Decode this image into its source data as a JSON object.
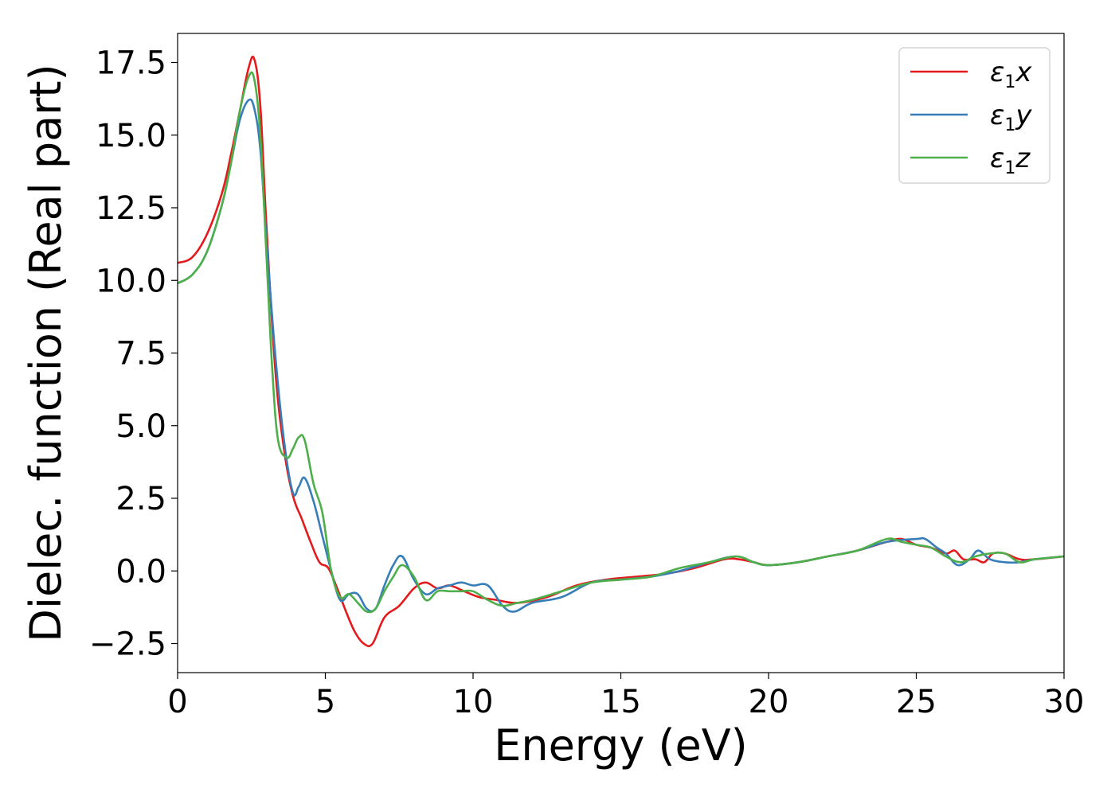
{
  "chart_data": {
    "type": "line",
    "xlabel": "Energy (eV)",
    "ylabel": "Dielec. function (Real part)",
    "xlim": [
      0,
      30
    ],
    "ylim": [
      -3.5,
      18.5
    ],
    "xticks": [
      0,
      5,
      10,
      15,
      20,
      25,
      30
    ],
    "xtick_labels": [
      "0",
      "5",
      "10",
      "15",
      "20",
      "25",
      "30"
    ],
    "yticks": [
      -2.5,
      0.0,
      2.5,
      5.0,
      7.5,
      10.0,
      12.5,
      15.0,
      17.5
    ],
    "ytick_labels": [
      "−2.5",
      "0.0",
      "2.5",
      "5.0",
      "7.5",
      "10.0",
      "12.5",
      "15.0",
      "17.5"
    ],
    "grid": false,
    "legend_position": "top-right",
    "series": [
      {
        "name": "ε1x",
        "legend_symbol": "ε",
        "legend_sub": "1",
        "legend_suffix": "x",
        "color": "#e41a1c",
        "x": [
          0,
          0.5,
          1,
          1.5,
          1.8,
          2.1,
          2.4,
          2.6,
          2.8,
          3.0,
          3.3,
          3.6,
          3.9,
          4.2,
          4.5,
          4.8,
          5.1,
          5.4,
          5.7,
          6.0,
          6.3,
          6.6,
          7.0,
          7.5,
          8.0,
          8.4,
          8.8,
          9.2,
          9.7,
          10.2,
          10.8,
          11.5,
          12.5,
          13.5,
          14.5,
          15.5,
          16.5,
          17.5,
          18.5,
          19.0,
          19.5,
          20.0,
          21.0,
          22.0,
          23.0,
          24.0,
          24.5,
          25.0,
          25.5,
          26.0,
          26.3,
          26.6,
          27.0,
          27.3,
          27.6,
          28.0,
          28.5,
          29.0,
          30.0
        ],
        "y": [
          10.6,
          10.8,
          11.6,
          13.0,
          14.3,
          15.8,
          17.3,
          17.6,
          16.0,
          12.0,
          7.0,
          4.2,
          2.6,
          1.8,
          1.0,
          0.3,
          0.1,
          -0.6,
          -1.4,
          -2.1,
          -2.5,
          -2.5,
          -1.6,
          -1.2,
          -0.6,
          -0.4,
          -0.6,
          -0.5,
          -0.7,
          -0.9,
          -1.0,
          -1.1,
          -0.9,
          -0.5,
          -0.3,
          -0.2,
          -0.1,
          0.1,
          0.4,
          0.4,
          0.3,
          0.2,
          0.3,
          0.5,
          0.7,
          1.0,
          1.1,
          0.9,
          0.8,
          0.6,
          0.7,
          0.4,
          0.4,
          0.3,
          0.6,
          0.6,
          0.4,
          0.4,
          0.5
        ]
      },
      {
        "name": "ε1y",
        "legend_symbol": "ε",
        "legend_sub": "1",
        "legend_suffix": "y",
        "color": "#377eb8",
        "x": [
          0,
          0.5,
          1,
          1.5,
          1.8,
          2.1,
          2.4,
          2.6,
          2.8,
          3.0,
          3.3,
          3.6,
          3.9,
          4.1,
          4.3,
          4.6,
          4.9,
          5.2,
          5.5,
          5.8,
          6.1,
          6.4,
          6.7,
          7.0,
          7.3,
          7.6,
          8.0,
          8.4,
          8.8,
          9.2,
          9.6,
          10.0,
          10.5,
          11.0,
          11.4,
          12.0,
          13.0,
          14.0,
          15.0,
          16.0,
          17.0,
          18.0,
          18.9,
          19.5,
          20.0,
          21.0,
          22.0,
          23.0,
          24.0,
          25.0,
          25.3,
          25.7,
          26.0,
          26.4,
          26.8,
          27.1,
          27.5,
          28.0,
          28.5,
          29.0,
          30.0
        ],
        "y": [
          9.9,
          10.2,
          11.0,
          12.6,
          14.0,
          15.5,
          16.2,
          15.9,
          14.5,
          11.5,
          7.5,
          4.5,
          2.7,
          2.9,
          3.2,
          2.4,
          1.2,
          0.0,
          -1.0,
          -0.8,
          -0.8,
          -1.3,
          -1.3,
          -0.5,
          0.2,
          0.5,
          -0.3,
          -0.8,
          -0.6,
          -0.5,
          -0.4,
          -0.5,
          -0.5,
          -1.2,
          -1.4,
          -1.1,
          -0.9,
          -0.4,
          -0.3,
          -0.2,
          0.0,
          0.3,
          0.5,
          0.3,
          0.2,
          0.3,
          0.5,
          0.7,
          1.0,
          1.1,
          1.1,
          0.8,
          0.6,
          0.2,
          0.4,
          0.7,
          0.4,
          0.3,
          0.3,
          0.4,
          0.5
        ]
      },
      {
        "name": "ε1z",
        "legend_symbol": "ε",
        "legend_sub": "1",
        "legend_suffix": "z",
        "color": "#4daf4a",
        "x": [
          0,
          0.5,
          1,
          1.5,
          1.8,
          2.1,
          2.4,
          2.6,
          2.8,
          3.0,
          3.2,
          3.4,
          3.7,
          3.9,
          4.1,
          4.3,
          4.6,
          4.9,
          5.2,
          5.5,
          5.8,
          6.1,
          6.4,
          6.7,
          7.0,
          7.3,
          7.6,
          8.0,
          8.4,
          8.8,
          9.2,
          9.6,
          10.0,
          10.5,
          11.0,
          11.5,
          12.0,
          13.0,
          14.0,
          15.0,
          16.0,
          17.0,
          18.0,
          18.9,
          19.5,
          20.0,
          21.0,
          22.0,
          23.0,
          24.0,
          24.5,
          25.0,
          25.5,
          26.0,
          26.5,
          27.0,
          27.5,
          28.0,
          28.5,
          29.0,
          30.0
        ],
        "y": [
          9.9,
          10.2,
          11.0,
          12.6,
          14.0,
          15.8,
          17.0,
          16.9,
          15.0,
          11.0,
          7.0,
          4.5,
          3.9,
          4.2,
          4.6,
          4.5,
          3.0,
          2.0,
          0.0,
          -0.9,
          -0.8,
          -1.1,
          -1.4,
          -1.3,
          -0.7,
          -0.2,
          0.2,
          -0.2,
          -1.0,
          -0.7,
          -0.7,
          -0.7,
          -0.7,
          -1.0,
          -1.2,
          -1.1,
          -1.0,
          -0.7,
          -0.4,
          -0.3,
          -0.2,
          0.1,
          0.3,
          0.5,
          0.3,
          0.2,
          0.3,
          0.5,
          0.7,
          1.1,
          1.0,
          0.9,
          0.8,
          0.5,
          0.3,
          0.5,
          0.6,
          0.6,
          0.3,
          0.4,
          0.5
        ]
      }
    ]
  }
}
